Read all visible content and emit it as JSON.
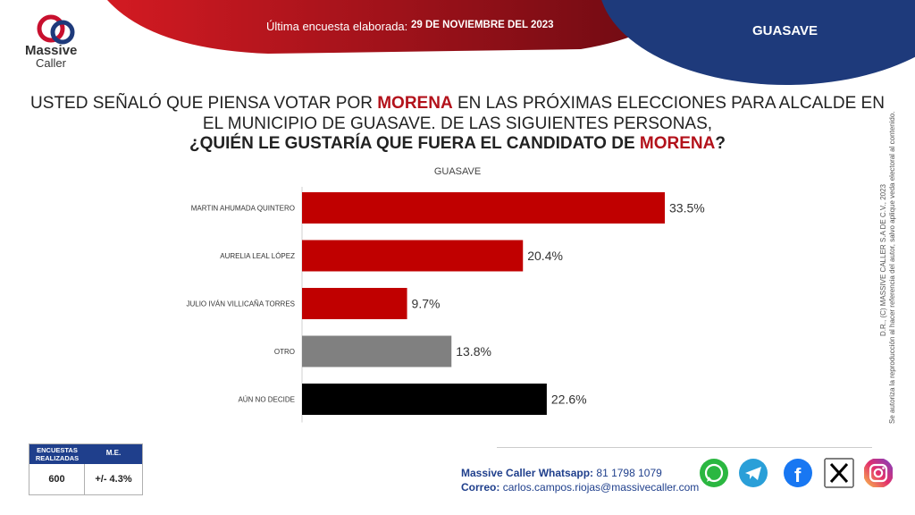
{
  "header": {
    "survey_label": "Última encuesta elaborada:",
    "survey_date": "29 DE NOVIEMBRE DEL 2023",
    "region": "GUASAVE"
  },
  "logo": {
    "line1": "Massive",
    "line2": "Caller"
  },
  "question": {
    "line1_a": "USTED SEÑALÓ QUE PIENSA VOTAR POR ",
    "line1_party": "MORENA",
    "line1_b": " EN LAS PRÓXIMAS ELECCIONES PARA ALCALDE EN",
    "line2": "EL MUNICIPIO DE GUASAVE.  DE LAS SIGUIENTES PERSONAS,",
    "line3_a": "¿QUIÉN LE GUSTARÍA QUE FUERA EL CANDIDATO DE ",
    "line3_party": "MORENA",
    "line3_b": "?"
  },
  "chart_data": {
    "type": "bar",
    "orientation": "horizontal",
    "title": "GUASAVE",
    "categories": [
      "MARTIN AHUMADA QUINTERO",
      "AURELIA LEAL LÓPEZ",
      "JULIO IVÁN VILLICAÑA TORRES",
      "OTRO",
      "AÚN NO DECIDE"
    ],
    "values": [
      33.5,
      20.4,
      9.7,
      13.8,
      22.6
    ],
    "value_labels": [
      "33.5%",
      "20.4%",
      "9.7%",
      "13.8%",
      "22.6%"
    ],
    "colors": [
      "#c00000",
      "#c00000",
      "#c00000",
      "#808080",
      "#000000"
    ],
    "xlim": [
      0,
      33.5
    ],
    "grid": false
  },
  "side_note": {
    "line1": "D.R., (C) MASSIVE CALLER S.A DE C.V., 2023",
    "line2": "Se autoriza la reproducción al hacer referencia del autor, salvo aplique veda electoral al contenido."
  },
  "stats": {
    "header1": "ENCUESTAS REALIZADAS",
    "header2": "M.E.",
    "value1": "600",
    "value2": "+/- 4.3%"
  },
  "contact": {
    "whatsapp_label": "Massive Caller Whatsapp:",
    "whatsapp_number": "81 1798 1079",
    "email_label": "Correo:",
    "email": "carlos.campos.riojas@massivecaller.com"
  },
  "social": [
    "whatsapp-icon",
    "telegram-icon",
    "facebook-icon",
    "x-icon",
    "instagram-icon"
  ],
  "colors": {
    "red": "#b3121b",
    "navy": "#1f3f8c"
  }
}
